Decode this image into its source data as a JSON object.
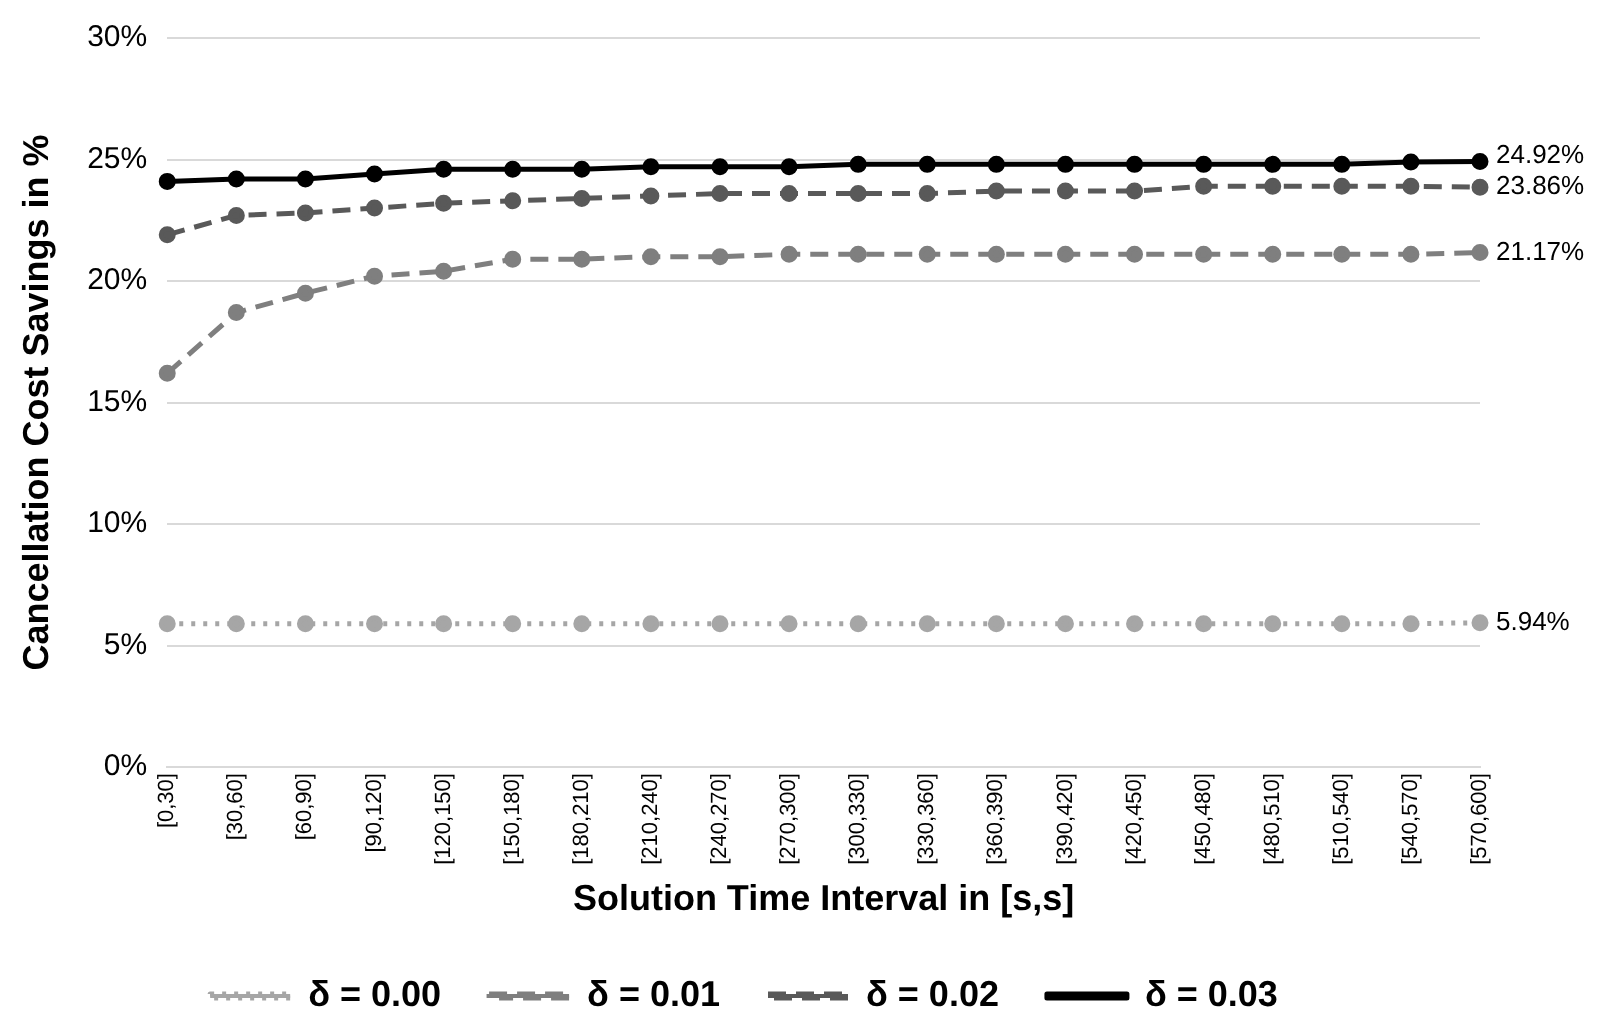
{
  "chart_data": {
    "type": "line",
    "xlabel": "Solution Time Interval in [s,s]",
    "ylabel": "Cancellation Cost Savings in %",
    "categories": [
      "[0,30]",
      "[30,60]",
      "[60,90]",
      "[90,120]",
      "[120,150]",
      "[150,180]",
      "[180,210]",
      "[210,240]",
      "[240,270]",
      "[270,300]",
      "[300,330]",
      "[330,360]",
      "[360,390]",
      "[390,420]",
      "[420,450]",
      "[450,480]",
      "[480,510]",
      "[510,540]",
      "[540,570]",
      "[570,600]"
    ],
    "series": [
      {
        "name": "δ = 0.00",
        "color": "#a6a6a6",
        "line_style": "dotted",
        "values": [
          5.9,
          5.9,
          5.9,
          5.9,
          5.9,
          5.9,
          5.9,
          5.9,
          5.9,
          5.9,
          5.9,
          5.9,
          5.9,
          5.9,
          5.9,
          5.9,
          5.9,
          5.9,
          5.9,
          5.94
        ],
        "value_labels": [
          null,
          null,
          null,
          null,
          null,
          null,
          null,
          null,
          null,
          null,
          null,
          null,
          null,
          null,
          null,
          null,
          null,
          null,
          null,
          "5.94%"
        ]
      },
      {
        "name": "δ = 0.01",
        "color": "#7f7f7f",
        "line_style": "dashed",
        "values": [
          16.2,
          18.7,
          19.5,
          20.2,
          20.4,
          20.9,
          20.9,
          21.0,
          21.0,
          21.1,
          21.1,
          21.1,
          21.1,
          21.1,
          21.1,
          21.1,
          21.1,
          21.1,
          21.1,
          21.17
        ],
        "value_labels": [
          null,
          null,
          null,
          null,
          null,
          null,
          null,
          null,
          null,
          null,
          null,
          null,
          null,
          null,
          null,
          null,
          null,
          null,
          null,
          "21.17%"
        ]
      },
      {
        "name": "δ = 0.02",
        "color": "#595959",
        "line_style": "dashed",
        "values": [
          21.9,
          22.7,
          22.8,
          23.0,
          23.2,
          23.3,
          23.4,
          23.5,
          23.6,
          23.6,
          23.6,
          23.6,
          23.7,
          23.7,
          23.7,
          23.9,
          23.9,
          23.9,
          23.9,
          23.86
        ],
        "value_labels": [
          null,
          null,
          null,
          null,
          null,
          null,
          null,
          null,
          null,
          null,
          null,
          null,
          null,
          null,
          null,
          null,
          null,
          null,
          null,
          "23.86%"
        ]
      },
      {
        "name": "δ = 0.03",
        "color": "#000000",
        "line_style": "solid",
        "values": [
          24.1,
          24.2,
          24.2,
          24.4,
          24.6,
          24.6,
          24.6,
          24.7,
          24.7,
          24.7,
          24.8,
          24.8,
          24.8,
          24.8,
          24.8,
          24.8,
          24.8,
          24.8,
          24.9,
          24.92
        ],
        "value_labels": [
          null,
          null,
          null,
          null,
          null,
          null,
          null,
          null,
          null,
          null,
          null,
          null,
          null,
          null,
          null,
          null,
          null,
          null,
          null,
          "24.92%"
        ]
      }
    ],
    "ylim": [
      0,
      30
    ],
    "yticks": [
      {
        "value": 0,
        "label": "0%"
      },
      {
        "value": 5,
        "label": "5%"
      },
      {
        "value": 10,
        "label": "10%"
      },
      {
        "value": 15,
        "label": "15%"
      },
      {
        "value": 20,
        "label": "20%"
      },
      {
        "value": 25,
        "label": "25%"
      },
      {
        "value": 30,
        "label": "30%"
      }
    ],
    "grid": "y",
    "legend": "bottom",
    "marker": "circle"
  }
}
